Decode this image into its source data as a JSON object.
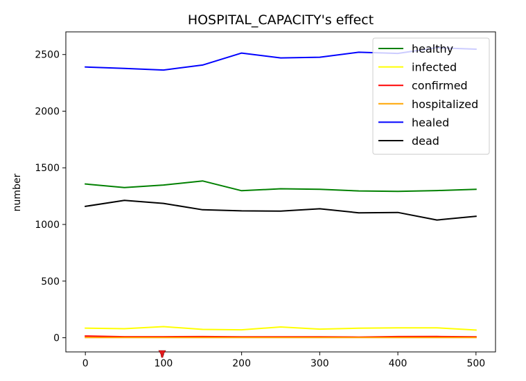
{
  "chart_data": {
    "type": "line",
    "title": "HOSPITAL_CAPACITY's effect",
    "xlabel": "",
    "ylabel": "number",
    "x": [
      0,
      50,
      100,
      150,
      200,
      250,
      300,
      350,
      400,
      450,
      500
    ],
    "xlim": [
      -25,
      525
    ],
    "ylim": [
      -125,
      2700
    ],
    "xticks": [
      0,
      100,
      200,
      300,
      400,
      500
    ],
    "yticks": [
      0,
      500,
      1000,
      1500,
      2000,
      2500
    ],
    "grid": false,
    "legend_position": "top-right",
    "series": [
      {
        "name": "healthy",
        "color": "#008000",
        "values": [
          1357,
          1326,
          1348,
          1384,
          1298,
          1315,
          1310,
          1296,
          1292,
          1299,
          1310
        ]
      },
      {
        "name": "infected",
        "color": "#ffff00",
        "values": [
          85,
          80,
          98,
          74,
          70,
          95,
          76,
          84,
          88,
          88,
          68
        ]
      },
      {
        "name": "confirmed",
        "color": "#ff0000",
        "values": [
          15,
          9,
          9,
          10,
          8,
          8,
          8,
          6,
          10,
          11,
          8
        ]
      },
      {
        "name": "hospitalized",
        "color": "#ffa500",
        "values": [
          2,
          2,
          2,
          2,
          2,
          2,
          2,
          2,
          2,
          2,
          2
        ]
      },
      {
        "name": "healed",
        "color": "#0000ff",
        "values": [
          2390,
          2378,
          2363,
          2407,
          2513,
          2470,
          2476,
          2520,
          2510,
          2560,
          2547
        ]
      },
      {
        "name": "dead",
        "color": "#000000",
        "values": [
          1160,
          1213,
          1186,
          1130,
          1120,
          1118,
          1138,
          1103,
          1106,
          1039,
          1072
        ]
      }
    ]
  }
}
